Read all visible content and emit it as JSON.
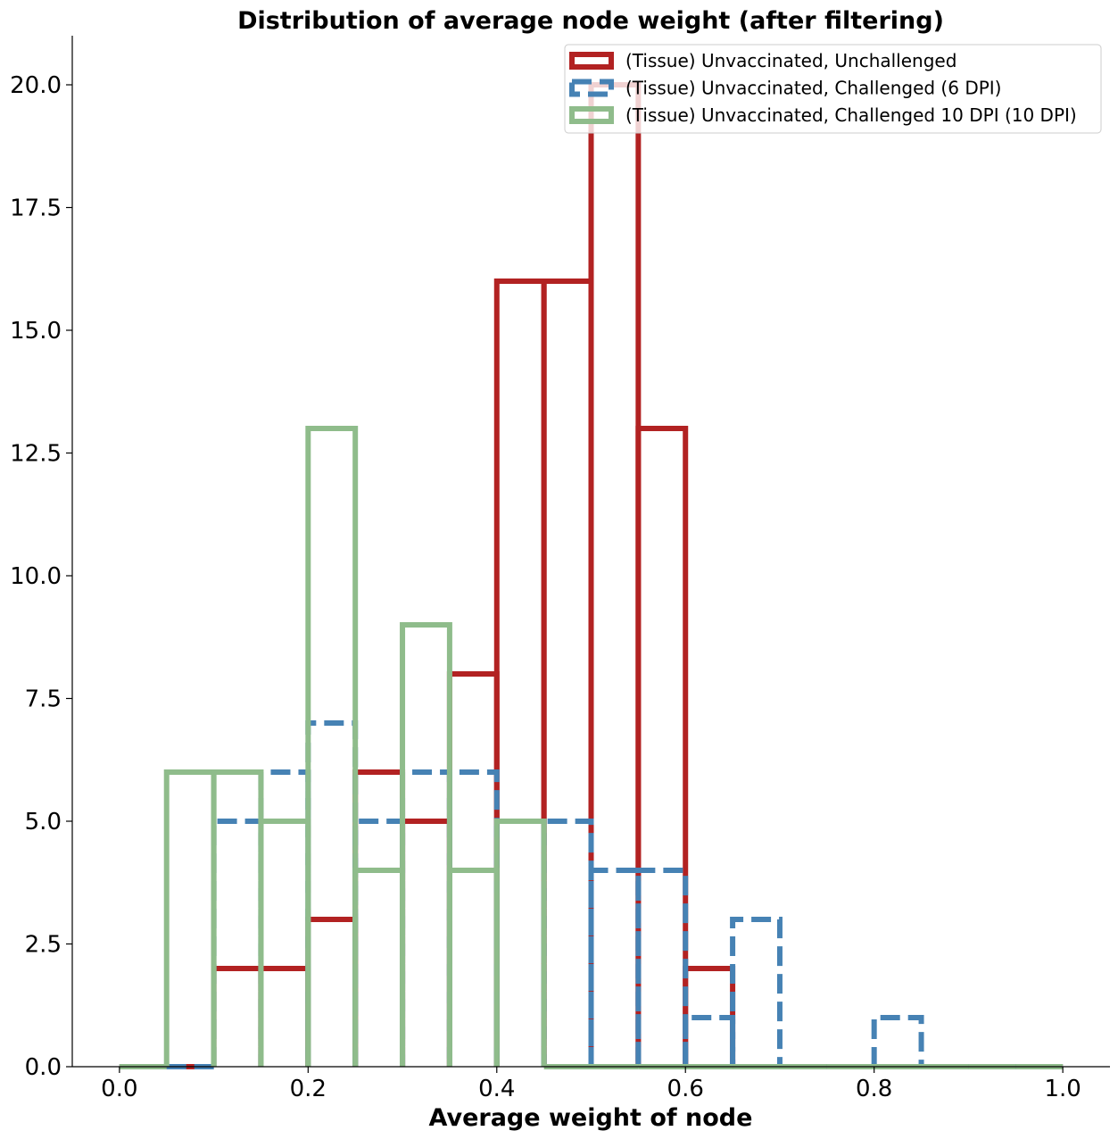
{
  "chart_data": {
    "type": "histogram",
    "title": "Distribution of average node weight (after filtering)",
    "xlabel": "Average weight of node",
    "ylabel": "",
    "xlim": [
      -0.05,
      1.05
    ],
    "ylim": [
      0,
      21
    ],
    "x_ticks": [
      "0.0",
      "0.2",
      "0.4",
      "0.6",
      "0.8",
      "1.0"
    ],
    "x_tick_values": [
      0.0,
      0.2,
      0.4,
      0.6,
      0.8,
      1.0
    ],
    "y_ticks": [
      "0.0",
      "2.5",
      "5.0",
      "7.5",
      "10.0",
      "12.5",
      "15.0",
      "17.5",
      "20.0"
    ],
    "y_tick_values": [
      0.0,
      2.5,
      5.0,
      7.5,
      10.0,
      12.5,
      15.0,
      17.5,
      20.0
    ],
    "bin_edges": [
      0.0,
      0.05,
      0.1,
      0.15,
      0.2,
      0.25,
      0.3,
      0.35,
      0.4,
      0.45,
      0.5,
      0.55,
      0.6,
      0.65,
      0.7,
      0.75,
      0.8,
      0.85,
      0.9,
      0.95,
      1.0
    ],
    "grid": false,
    "legend_position": "top-right",
    "series": [
      {
        "name": "(Tissue) Unvaccinated, Unchallenged",
        "color": "#b22222",
        "linestyle": "solid",
        "counts": [
          0,
          0,
          2,
          2,
          3,
          6,
          5,
          8,
          16,
          16,
          20,
          13,
          2,
          0,
          0,
          0,
          0,
          0,
          0,
          0
        ]
      },
      {
        "name": "(Tissue) Unvaccinated, Challenged (6 DPI)",
        "color": "#4682b4",
        "linestyle": "dashed",
        "counts": [
          0,
          0,
          5,
          6,
          7,
          5,
          6,
          6,
          5,
          5,
          4,
          4,
          1,
          3,
          0,
          0,
          1,
          0,
          0,
          0
        ]
      },
      {
        "name": "(Tissue) Unvaccinated, Challenged 10 DPI (10 DPI)",
        "color": "#8fbc8b",
        "linestyle": "solid",
        "counts": [
          0,
          6,
          6,
          5,
          13,
          4,
          9,
          4,
          5,
          0,
          0,
          0,
          0,
          0,
          0,
          0,
          0,
          0,
          0,
          0
        ]
      }
    ]
  }
}
